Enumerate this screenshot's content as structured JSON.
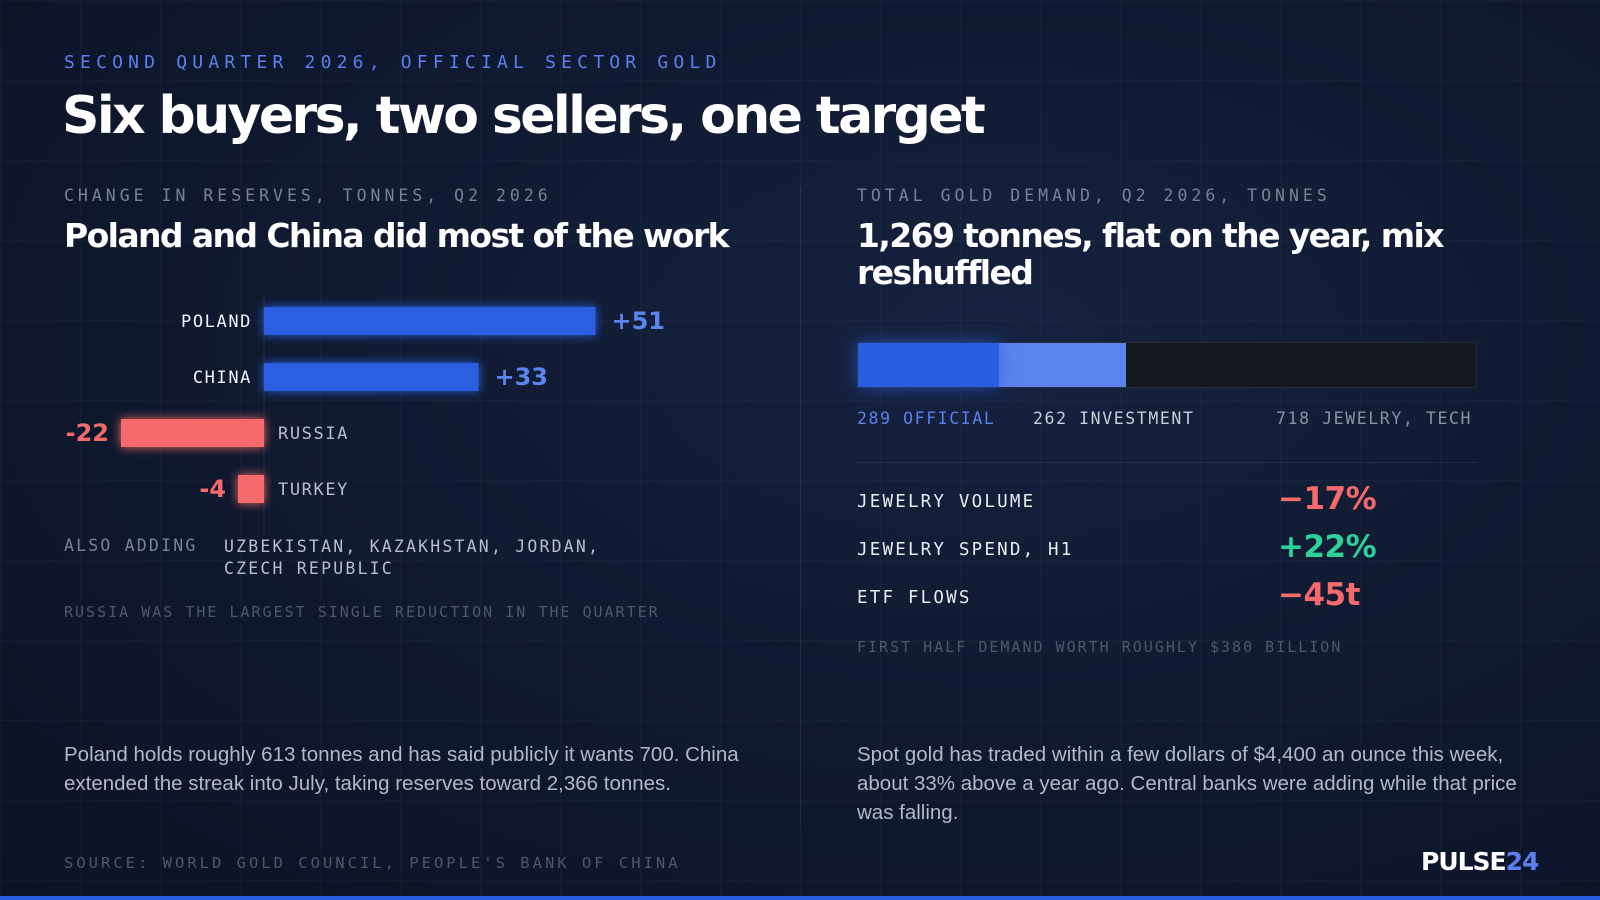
{
  "kicker": "SECOND QUARTER 2026, OFFICIAL SECTOR GOLD",
  "headline": "Six buyers, two sellers, one target",
  "left_panel": {
    "eyebrow": "CHANGE IN RESERVES, TONNES, Q2 2026",
    "title": "Poland and China did most of the work",
    "also_label": "ALSO ADDING",
    "also_list": "UZBEKISTAN, KAZAKHSTAN, JORDAN, CZECH REPUBLIC",
    "note": "RUSSIA WAS THE LARGEST SINGLE REDUCTION IN THE QUARTER"
  },
  "chart_data": {
    "type": "bar",
    "orientation": "horizontal",
    "categories": [
      "POLAND",
      "CHINA",
      "RUSSIA",
      "TURKEY"
    ],
    "values": [
      51,
      33,
      -22,
      -4
    ],
    "value_labels": [
      "+51",
      "+33",
      "-22",
      "-4"
    ],
    "colors": {
      "positive": "#2a5ee2",
      "negative": "#f56b6b"
    }
  },
  "right_panel": {
    "eyebrow": "TOTAL GOLD DEMAND, Q2 2026, TONNES",
    "title": "1,269 tonnes, flat on the year, mix reshuffled",
    "stack": [
      {
        "label": "289 OFFICIAL",
        "value": 289,
        "color": "#2a5ee2"
      },
      {
        "label": "262 INVESTMENT",
        "value": 262,
        "color": "#5b84ee"
      },
      {
        "label": "718 JEWELRY, TECH",
        "value": 718,
        "color": "#141820"
      }
    ],
    "stack_total": 1269,
    "metrics": [
      {
        "label": "JEWELRY VOLUME",
        "value": "−17%",
        "color": "#f56b6b"
      },
      {
        "label": "JEWELRY SPEND, H1",
        "value": "+22%",
        "color": "#2ed19a"
      },
      {
        "label": "ETF FLOWS",
        "value": "−45t",
        "color": "#f56b6b"
      }
    ],
    "note": "FIRST HALF DEMAND WORTH ROUGHLY $380 BILLION"
  },
  "body_left": "Poland holds roughly 613 tonnes and has said publicly it wants 700. China extended the streak into July, taking reserves toward 2,366 tonnes.",
  "body_right": "Spot gold has traded within a few dollars of $4,400 an ounce this week, about 33% above a year ago. Central banks were adding while that price was falling.",
  "source": "SOURCE: WORLD GOLD COUNCIL, PEOPLE'S BANK OF CHINA",
  "logo": {
    "part1": "PULSE",
    "part2": "24"
  },
  "colors": {
    "accent": "#2a5ee2",
    "accent_light": "#5b84ee",
    "negative": "#f56b6b",
    "positive": "#2ed19a"
  }
}
